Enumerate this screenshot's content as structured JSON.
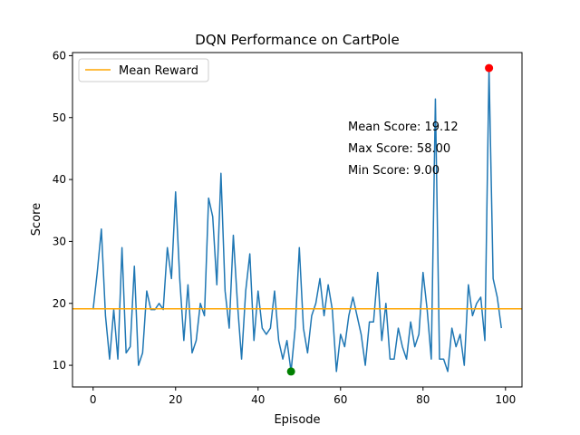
{
  "chart_data": {
    "type": "line",
    "title": "DQN Performance on CartPole",
    "xlabel": "Episode",
    "ylabel": "Score",
    "xlim": [
      -5,
      104
    ],
    "ylim": [
      6.5,
      60.5
    ],
    "xticks": [
      0,
      20,
      40,
      60,
      80,
      100
    ],
    "yticks": [
      10,
      20,
      30,
      40,
      50,
      60
    ],
    "grid": false,
    "legend_position": "top-left",
    "series": [
      {
        "name": "",
        "color": "#1f77b4",
        "x": [
          0,
          1,
          2,
          3,
          4,
          5,
          6,
          7,
          8,
          9,
          10,
          11,
          12,
          13,
          14,
          15,
          16,
          17,
          18,
          19,
          20,
          21,
          22,
          23,
          24,
          25,
          26,
          27,
          28,
          29,
          30,
          31,
          32,
          33,
          34,
          35,
          36,
          37,
          38,
          39,
          40,
          41,
          42,
          43,
          44,
          45,
          46,
          47,
          48,
          49,
          50,
          51,
          52,
          53,
          54,
          55,
          56,
          57,
          58,
          59,
          60,
          61,
          62,
          63,
          64,
          65,
          66,
          67,
          68,
          69,
          70,
          71,
          72,
          73,
          74,
          75,
          76,
          77,
          78,
          79,
          80,
          81,
          82,
          83,
          84,
          85,
          86,
          87,
          88,
          89,
          90,
          91,
          92,
          93,
          94,
          95,
          96,
          97,
          98,
          99
        ],
        "y": [
          19,
          25,
          32,
          18,
          11,
          19,
          11,
          29,
          12,
          13,
          26,
          10,
          12,
          22,
          19,
          19,
          20,
          19,
          29,
          24,
          38,
          24,
          14,
          23,
          12,
          14,
          20,
          18,
          37,
          34,
          23,
          41,
          22,
          16,
          31,
          20,
          11,
          22,
          28,
          14,
          22,
          16,
          15,
          16,
          22,
          14,
          11,
          14,
          9,
          16,
          29,
          16,
          12,
          18,
          20,
          24,
          18,
          23,
          19,
          9,
          15,
          13,
          18,
          21,
          18,
          15,
          10,
          17,
          17,
          25,
          14,
          20,
          11,
          11,
          16,
          13,
          11,
          17,
          13,
          15,
          25,
          19,
          11,
          53,
          11,
          11,
          9,
          16,
          13,
          15,
          10,
          23,
          18,
          20,
          21,
          14,
          58,
          24,
          21,
          16
        ]
      }
    ],
    "reference_lines": [
      {
        "name": "Mean Reward",
        "y": 19.12,
        "color": "#ffa500"
      }
    ],
    "markers": [
      {
        "x": 96,
        "y": 58,
        "color": "#ff0000"
      },
      {
        "x": 48,
        "y": 9,
        "color": "#008000"
      }
    ],
    "annotations": [
      "Mean Score: 19.12",
      "Max Score: 58.00",
      "Min Score: 9.00"
    ]
  }
}
